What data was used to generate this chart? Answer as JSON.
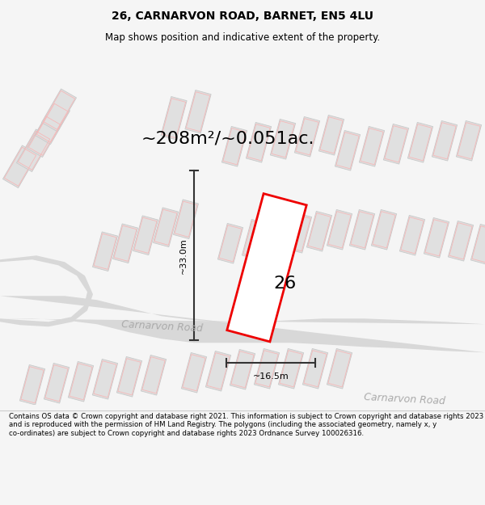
{
  "title": "26, CARNARVON ROAD, BARNET, EN5 4LU",
  "subtitle": "Map shows position and indicative extent of the property.",
  "area_label": "~208m²/~0.051ac.",
  "house_number": "26",
  "dim_height": "~33.0m",
  "dim_width": "~16.5m",
  "road_label_1": "Carnarvon Road",
  "road_label_2": "Carnarvon Road",
  "footer": "Contains OS data © Crown copyright and database right 2021. This information is subject to Crown copyright and database rights 2023 and is reproduced with the permission of HM Land Registry. The polygons (including the associated geometry, namely x, y co-ordinates) are subject to Crown copyright and database rights 2023 Ordnance Survey 100026316.",
  "bg_color": "#f5f5f5",
  "map_bg": "#f0f0f0",
  "plot_color": "#ee0000",
  "plot_fill": "#ffffff",
  "road_color": "#d8d8d8",
  "building_fill": "#e0e0e0",
  "building_edge": "#c8c8c8",
  "plot_edge_color": "#f5b8b8",
  "road_label_color": "#aaaaaa",
  "title_color": "#000000",
  "footer_color": "#000000",
  "dim_color": "#333333",
  "title_fontsize": 10,
  "subtitle_fontsize": 8.5,
  "footer_fontsize": 6.2,
  "area_fontsize": 16,
  "housenumber_fontsize": 16,
  "dim_fontsize": 8,
  "road_label_fontsize": 9
}
